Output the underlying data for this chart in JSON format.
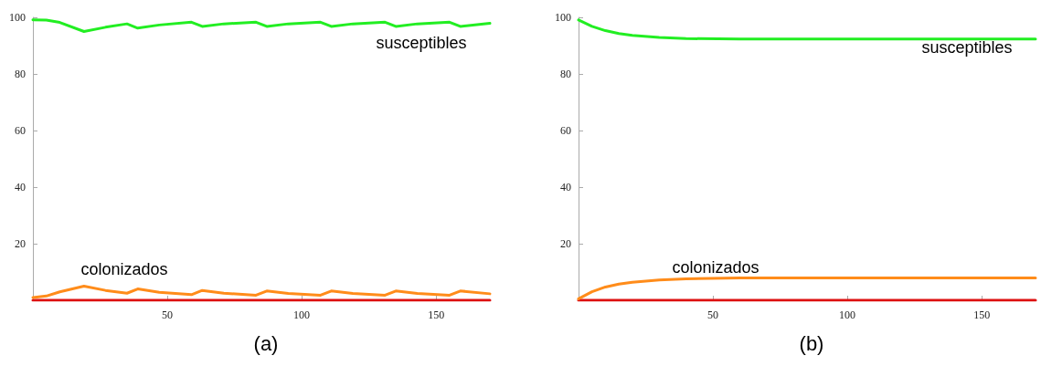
{
  "chart_data": [
    {
      "type": "line",
      "title": "(a)",
      "xlim": [
        0,
        170
      ],
      "ylim": [
        0,
        100
      ],
      "xticks": [
        50,
        100,
        150
      ],
      "yticks": [
        20,
        40,
        60,
        80,
        100
      ],
      "grid": false,
      "legend": false,
      "marker": "none",
      "line_style": "solid",
      "series": [
        {
          "name": "susceptibles",
          "color": "#22ee22",
          "x": [
            0,
            5,
            10,
            19,
            27,
            35,
            39,
            47,
            59,
            63,
            71,
            83,
            87,
            95,
            107,
            111,
            119,
            131,
            135,
            143,
            155,
            159,
            170
          ],
          "values": [
            99.1,
            99.0,
            98.2,
            95.0,
            96.5,
            97.7,
            96.2,
            97.3,
            98.3,
            96.8,
            97.7,
            98.3,
            96.8,
            97.7,
            98.3,
            96.8,
            97.7,
            98.3,
            96.8,
            97.7,
            98.3,
            96.8,
            97.9
          ]
        },
        {
          "name": "colonizados",
          "color": "#ff8c1a",
          "x": [
            0,
            5,
            10,
            19,
            27,
            35,
            39,
            47,
            59,
            63,
            71,
            83,
            87,
            95,
            107,
            111,
            119,
            131,
            135,
            143,
            155,
            159,
            170
          ],
          "values": [
            1.0,
            1.5,
            3.0,
            5.0,
            3.5,
            2.5,
            4.0,
            2.8,
            2.0,
            3.5,
            2.5,
            1.8,
            3.3,
            2.4,
            1.8,
            3.3,
            2.4,
            1.8,
            3.3,
            2.4,
            1.8,
            3.3,
            2.3
          ]
        },
        {
          "color": "#dd1111",
          "x": [
            0,
            170
          ],
          "values": [
            0,
            0
          ]
        }
      ]
    },
    {
      "type": "line",
      "title": "(b)",
      "xlim": [
        0,
        170
      ],
      "ylim": [
        0,
        100
      ],
      "xticks": [
        50,
        100,
        150
      ],
      "yticks": [
        20,
        40,
        60,
        80,
        100
      ],
      "grid": false,
      "legend": false,
      "marker": "none",
      "line_style": "solid",
      "series": [
        {
          "name": "susceptibles",
          "color": "#22ee22",
          "x": [
            0,
            5,
            10,
            15,
            20,
            30,
            40,
            60,
            100,
            170
          ],
          "values": [
            99.1,
            96.8,
            95.3,
            94.3,
            93.6,
            92.9,
            92.5,
            92.3,
            92.3,
            92.3
          ]
        },
        {
          "name": "colonizados",
          "color": "#ff8c1a",
          "x": [
            0,
            5,
            10,
            15,
            20,
            30,
            40,
            60,
            100,
            170
          ],
          "values": [
            0.5,
            3.0,
            4.7,
            5.7,
            6.4,
            7.2,
            7.6,
            7.9,
            7.9,
            7.9
          ]
        },
        {
          "color": "#dd1111",
          "x": [
            0,
            170
          ],
          "values": [
            0,
            0
          ]
        }
      ]
    }
  ]
}
